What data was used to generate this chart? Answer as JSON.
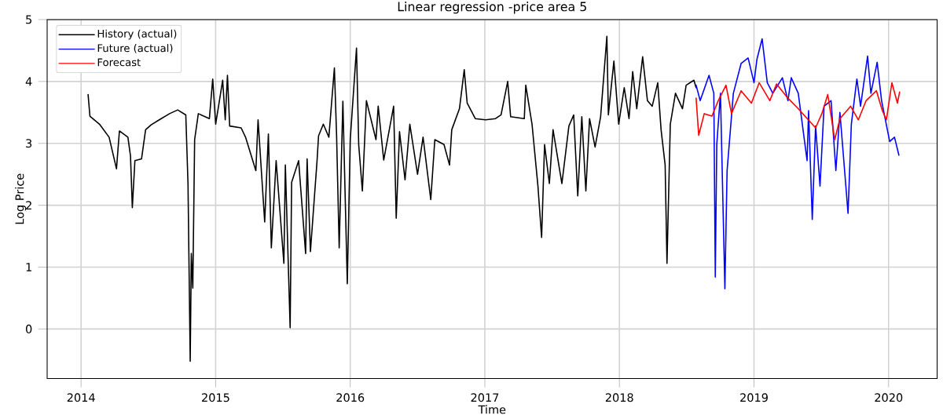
{
  "chart_data": {
    "type": "line",
    "title": "Linear regression -price area 5",
    "xlabel": "Time",
    "ylabel": "Log Price",
    "xlim": [
      "2013-10-01",
      "2020-05-12"
    ],
    "xticks": [
      "2014",
      "2015",
      "2016",
      "2017",
      "2018",
      "2019",
      "2020"
    ],
    "ylim": [
      -0.8,
      5
    ],
    "yticks": [
      0,
      1,
      2,
      3,
      4,
      5
    ],
    "grid": true,
    "legend": "top left",
    "series": [
      {
        "name": "History (actual)",
        "color": "#000000",
        "x": [
          "2014-01-20",
          "2014-01-25",
          "2014-02-20",
          "2014-03-18",
          "2014-04-07",
          "2014-04-15",
          "2014-05-08",
          "2014-05-15",
          "2014-05-20",
          "2014-05-27",
          "2014-06-14",
          "2014-06-25",
          "2014-07-10",
          "2014-08-01",
          "2014-08-29",
          "2014-09-20",
          "2014-10-12",
          "2014-10-18",
          "2014-10-24",
          "2014-10-27",
          "2014-10-31",
          "2014-11-05",
          "2014-11-15",
          "2014-12-15",
          "2014-12-24",
          "2015-01-01",
          "2015-01-20",
          "2015-01-27",
          "2015-02-02",
          "2015-02-08",
          "2015-03-11",
          "2015-03-23",
          "2015-04-20",
          "2015-04-26",
          "2015-05-14",
          "2015-05-24",
          "2015-06-01",
          "2015-06-14",
          "2015-07-05",
          "2015-07-09",
          "2015-07-22",
          "2015-07-26",
          "2015-08-14",
          "2015-09-02",
          "2015-09-06",
          "2015-09-15",
          "2015-10-03",
          "2015-10-07",
          "2015-10-20",
          "2015-11-04",
          "2015-11-19",
          "2015-11-25",
          "2015-12-02",
          "2015-12-12",
          "2015-12-24",
          "2016-01-01",
          "2016-01-18",
          "2016-01-24",
          "2016-02-03",
          "2016-02-14",
          "2016-03-11",
          "2016-03-17",
          "2016-04-01",
          "2016-04-28",
          "2016-05-05",
          "2016-05-14",
          "2016-05-29",
          "2016-06-11",
          "2016-07-02",
          "2016-07-17",
          "2016-08-07",
          "2016-08-18",
          "2016-09-12",
          "2016-09-27",
          "2016-10-03",
          "2016-10-24",
          "2016-11-06",
          "2016-11-14",
          "2016-12-06",
          "2017-01-03",
          "2017-01-30",
          "2017-02-14",
          "2017-03-04",
          "2017-03-12",
          "2017-04-18",
          "2017-04-22",
          "2017-05-09",
          "2017-05-25",
          "2017-06-04",
          "2017-06-12",
          "2017-06-25",
          "2017-07-05",
          "2017-07-29",
          "2017-08-17",
          "2017-08-30",
          "2017-09-10",
          "2017-09-21",
          "2017-10-02",
          "2017-10-12",
          "2017-10-27",
          "2017-11-11",
          "2017-11-28",
          "2017-12-02",
          "2017-12-17",
          "2017-12-30",
          "2018-01-14",
          "2018-01-27",
          "2018-02-06",
          "2018-02-17",
          "2018-03-05",
          "2018-03-18",
          "2018-03-31",
          "2018-04-15",
          "2018-04-24",
          "2018-05-05",
          "2018-05-10",
          "2018-05-12",
          "2018-05-19",
          "2018-06-02",
          "2018-06-21",
          "2018-07-01",
          "2018-07-22",
          "2018-07-28"
        ],
        "values": [
          3.79,
          3.44,
          3.31,
          3.1,
          2.59,
          3.2,
          3.1,
          2.8,
          1.96,
          2.72,
          2.75,
          3.22,
          3.3,
          3.38,
          3.48,
          3.54,
          3.46,
          2.35,
          -0.52,
          1.22,
          0.66,
          3.06,
          3.48,
          3.4,
          4.04,
          3.31,
          4.02,
          3.38,
          4.1,
          3.28,
          3.25,
          3.1,
          2.56,
          3.38,
          1.73,
          3.15,
          1.31,
          2.72,
          1.06,
          2.65,
          0.02,
          2.37,
          2.72,
          1.22,
          2.75,
          1.25,
          2.72,
          3.12,
          3.31,
          3.1,
          4.22,
          3.12,
          1.31,
          3.68,
          0.73,
          3.06,
          4.54,
          2.98,
          2.23,
          3.69,
          3.06,
          3.6,
          2.73,
          3.6,
          1.79,
          3.19,
          2.41,
          3.31,
          2.5,
          3.1,
          2.09,
          3.06,
          2.98,
          2.65,
          3.22,
          3.56,
          4.19,
          3.65,
          3.4,
          3.38,
          3.4,
          3.46,
          4.0,
          3.43,
          3.4,
          3.94,
          3.31,
          2.31,
          1.48,
          2.98,
          2.35,
          3.22,
          2.35,
          3.28,
          3.46,
          2.15,
          3.43,
          2.23,
          3.4,
          2.94,
          3.43,
          4.73,
          3.46,
          4.33,
          3.31,
          3.9,
          3.4,
          4.16,
          3.56,
          4.4,
          3.69,
          3.6,
          3.98,
          3.22,
          2.65,
          1.06,
          1.56,
          3.31,
          3.81,
          3.56,
          3.94,
          4.02,
          3.9
        ]
      },
      {
        "name": "Future (actual)",
        "color": "#0000ff",
        "x": [
          "2018-07-28",
          "2018-08-08",
          "2018-09-01",
          "2018-09-14",
          "2018-09-18",
          "2018-09-22",
          "2018-10-02",
          "2018-10-14",
          "2018-10-20",
          "2018-11-06",
          "2018-11-27",
          "2018-12-16",
          "2019-01-01",
          "2019-01-09",
          "2019-01-23",
          "2019-02-06",
          "2019-02-21",
          "2019-03-19",
          "2019-04-03",
          "2019-04-12",
          "2019-05-01",
          "2019-05-25",
          "2019-05-29",
          "2019-06-08",
          "2019-06-17",
          "2019-06-29",
          "2019-07-10",
          "2019-07-29",
          "2019-08-11",
          "2019-08-22",
          "2019-09-13",
          "2019-09-22",
          "2019-10-07",
          "2019-10-17",
          "2019-11-05",
          "2019-11-14",
          "2019-12-01",
          "2019-12-13",
          "2020-01-04",
          "2020-01-17",
          "2020-01-29"
        ],
        "values": [
          3.94,
          3.69,
          4.1,
          3.81,
          0.84,
          2.98,
          3.81,
          0.65,
          2.56,
          3.81,
          4.29,
          4.38,
          3.98,
          4.36,
          4.69,
          3.98,
          3.81,
          4.06,
          3.69,
          4.06,
          3.81,
          2.72,
          3.53,
          1.77,
          3.28,
          2.31,
          3.6,
          3.69,
          2.56,
          3.5,
          1.87,
          3.31,
          4.04,
          3.6,
          4.41,
          3.81,
          4.31,
          3.69,
          3.03,
          3.1,
          2.81
        ]
      },
      {
        "name": "Forecast",
        "color": "#ff0000",
        "x": [
          "2018-07-28",
          "2018-08-04",
          "2018-08-19",
          "2018-09-09",
          "2018-09-26",
          "2018-10-17",
          "2018-11-01",
          "2018-11-27",
          "2018-12-25",
          "2019-01-15",
          "2019-02-13",
          "2019-03-03",
          "2019-04-03",
          "2019-05-01",
          "2019-06-17",
          "2019-07-04",
          "2019-07-20",
          "2019-08-08",
          "2019-08-22",
          "2019-09-20",
          "2019-10-11",
          "2019-11-01",
          "2019-11-29",
          "2019-12-15",
          "2019-12-26",
          "2020-01-10",
          "2020-01-25",
          "2020-01-31"
        ],
        "values": [
          3.73,
          3.13,
          3.48,
          3.44,
          3.69,
          3.94,
          3.48,
          3.85,
          3.65,
          3.98,
          3.69,
          3.96,
          3.73,
          3.56,
          3.25,
          3.48,
          3.79,
          3.06,
          3.4,
          3.6,
          3.38,
          3.69,
          3.85,
          3.53,
          3.38,
          3.98,
          3.65,
          3.83
        ]
      }
    ]
  }
}
